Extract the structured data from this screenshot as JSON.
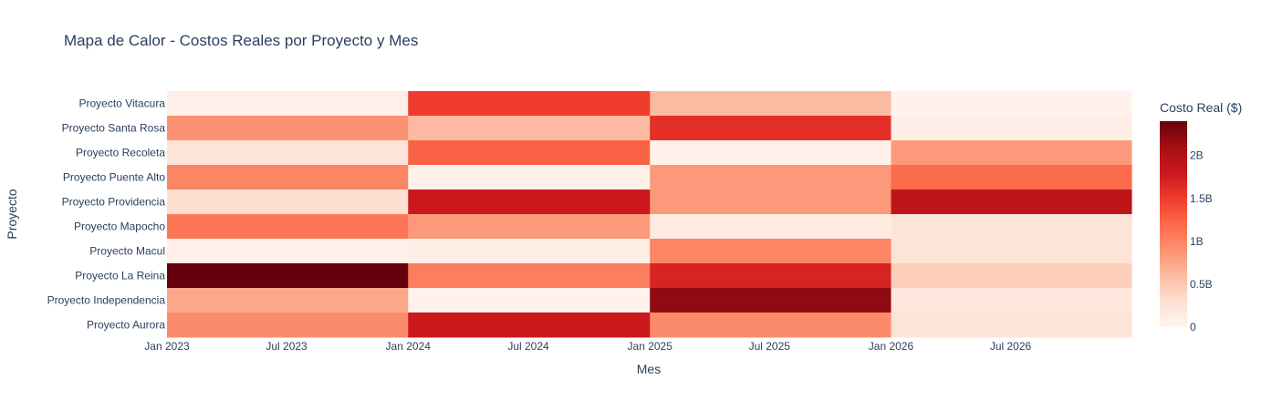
{
  "chart_data": {
    "type": "heatmap",
    "title": "Mapa de Calor - Costos Reales por Proyecto y Mes",
    "xlabel": "Mes",
    "ylabel": "Proyecto",
    "colorbar_title": "Costo Real ($)",
    "colorscale": "Reds",
    "zlim": [
      0,
      2400000000
    ],
    "x_range": [
      "2023-01-01",
      "2026-12-31"
    ],
    "x_ticks": [
      "Jan 2023",
      "Jul 2023",
      "Jan 2024",
      "Jul 2024",
      "Jan 2025",
      "Jul 2025",
      "Jan 2026",
      "Jul 2026"
    ],
    "x_tick_dates": [
      "2023-01-01",
      "2023-07-01",
      "2024-01-01",
      "2024-07-01",
      "2025-01-01",
      "2025-07-01",
      "2026-01-01",
      "2026-07-01"
    ],
    "x_periods": [
      {
        "start": "2023-01-01",
        "end": "2024-01-01"
      },
      {
        "start": "2024-01-01",
        "end": "2025-01-01"
      },
      {
        "start": "2025-01-01",
        "end": "2026-01-01"
      },
      {
        "start": "2026-01-01",
        "end": "2026-12-31"
      }
    ],
    "colorbar_ticks": [
      {
        "value": 0,
        "label": "0"
      },
      {
        "value": 500000000,
        "label": "0.5B"
      },
      {
        "value": 1000000000,
        "label": "1B"
      },
      {
        "value": 1500000000,
        "label": "1.5B"
      },
      {
        "value": 2000000000,
        "label": "2B"
      }
    ],
    "projects": [
      "Proyecto Vitacura",
      "Proyecto Santa Rosa",
      "Proyecto Recoleta",
      "Proyecto Puente Alto",
      "Proyecto Providencia",
      "Proyecto Mapocho",
      "Proyecto Macul",
      "Proyecto La Reina",
      "Proyecto Independencia",
      "Proyecto Aurora"
    ],
    "values": [
      [
        80000000,
        1500000000,
        600000000,
        40000000
      ],
      [
        900000000,
        600000000,
        1600000000,
        100000000
      ],
      [
        250000000,
        1250000000,
        60000000,
        850000000
      ],
      [
        1000000000,
        50000000,
        850000000,
        1200000000
      ],
      [
        300000000,
        1800000000,
        850000000,
        1900000000
      ],
      [
        1100000000,
        850000000,
        150000000,
        250000000
      ],
      [
        80000000,
        100000000,
        1000000000,
        250000000
      ],
      [
        2400000000,
        1050000000,
        1700000000,
        450000000
      ],
      [
        750000000,
        40000000,
        2200000000,
        200000000
      ],
      [
        950000000,
        1800000000,
        950000000,
        250000000
      ]
    ]
  }
}
